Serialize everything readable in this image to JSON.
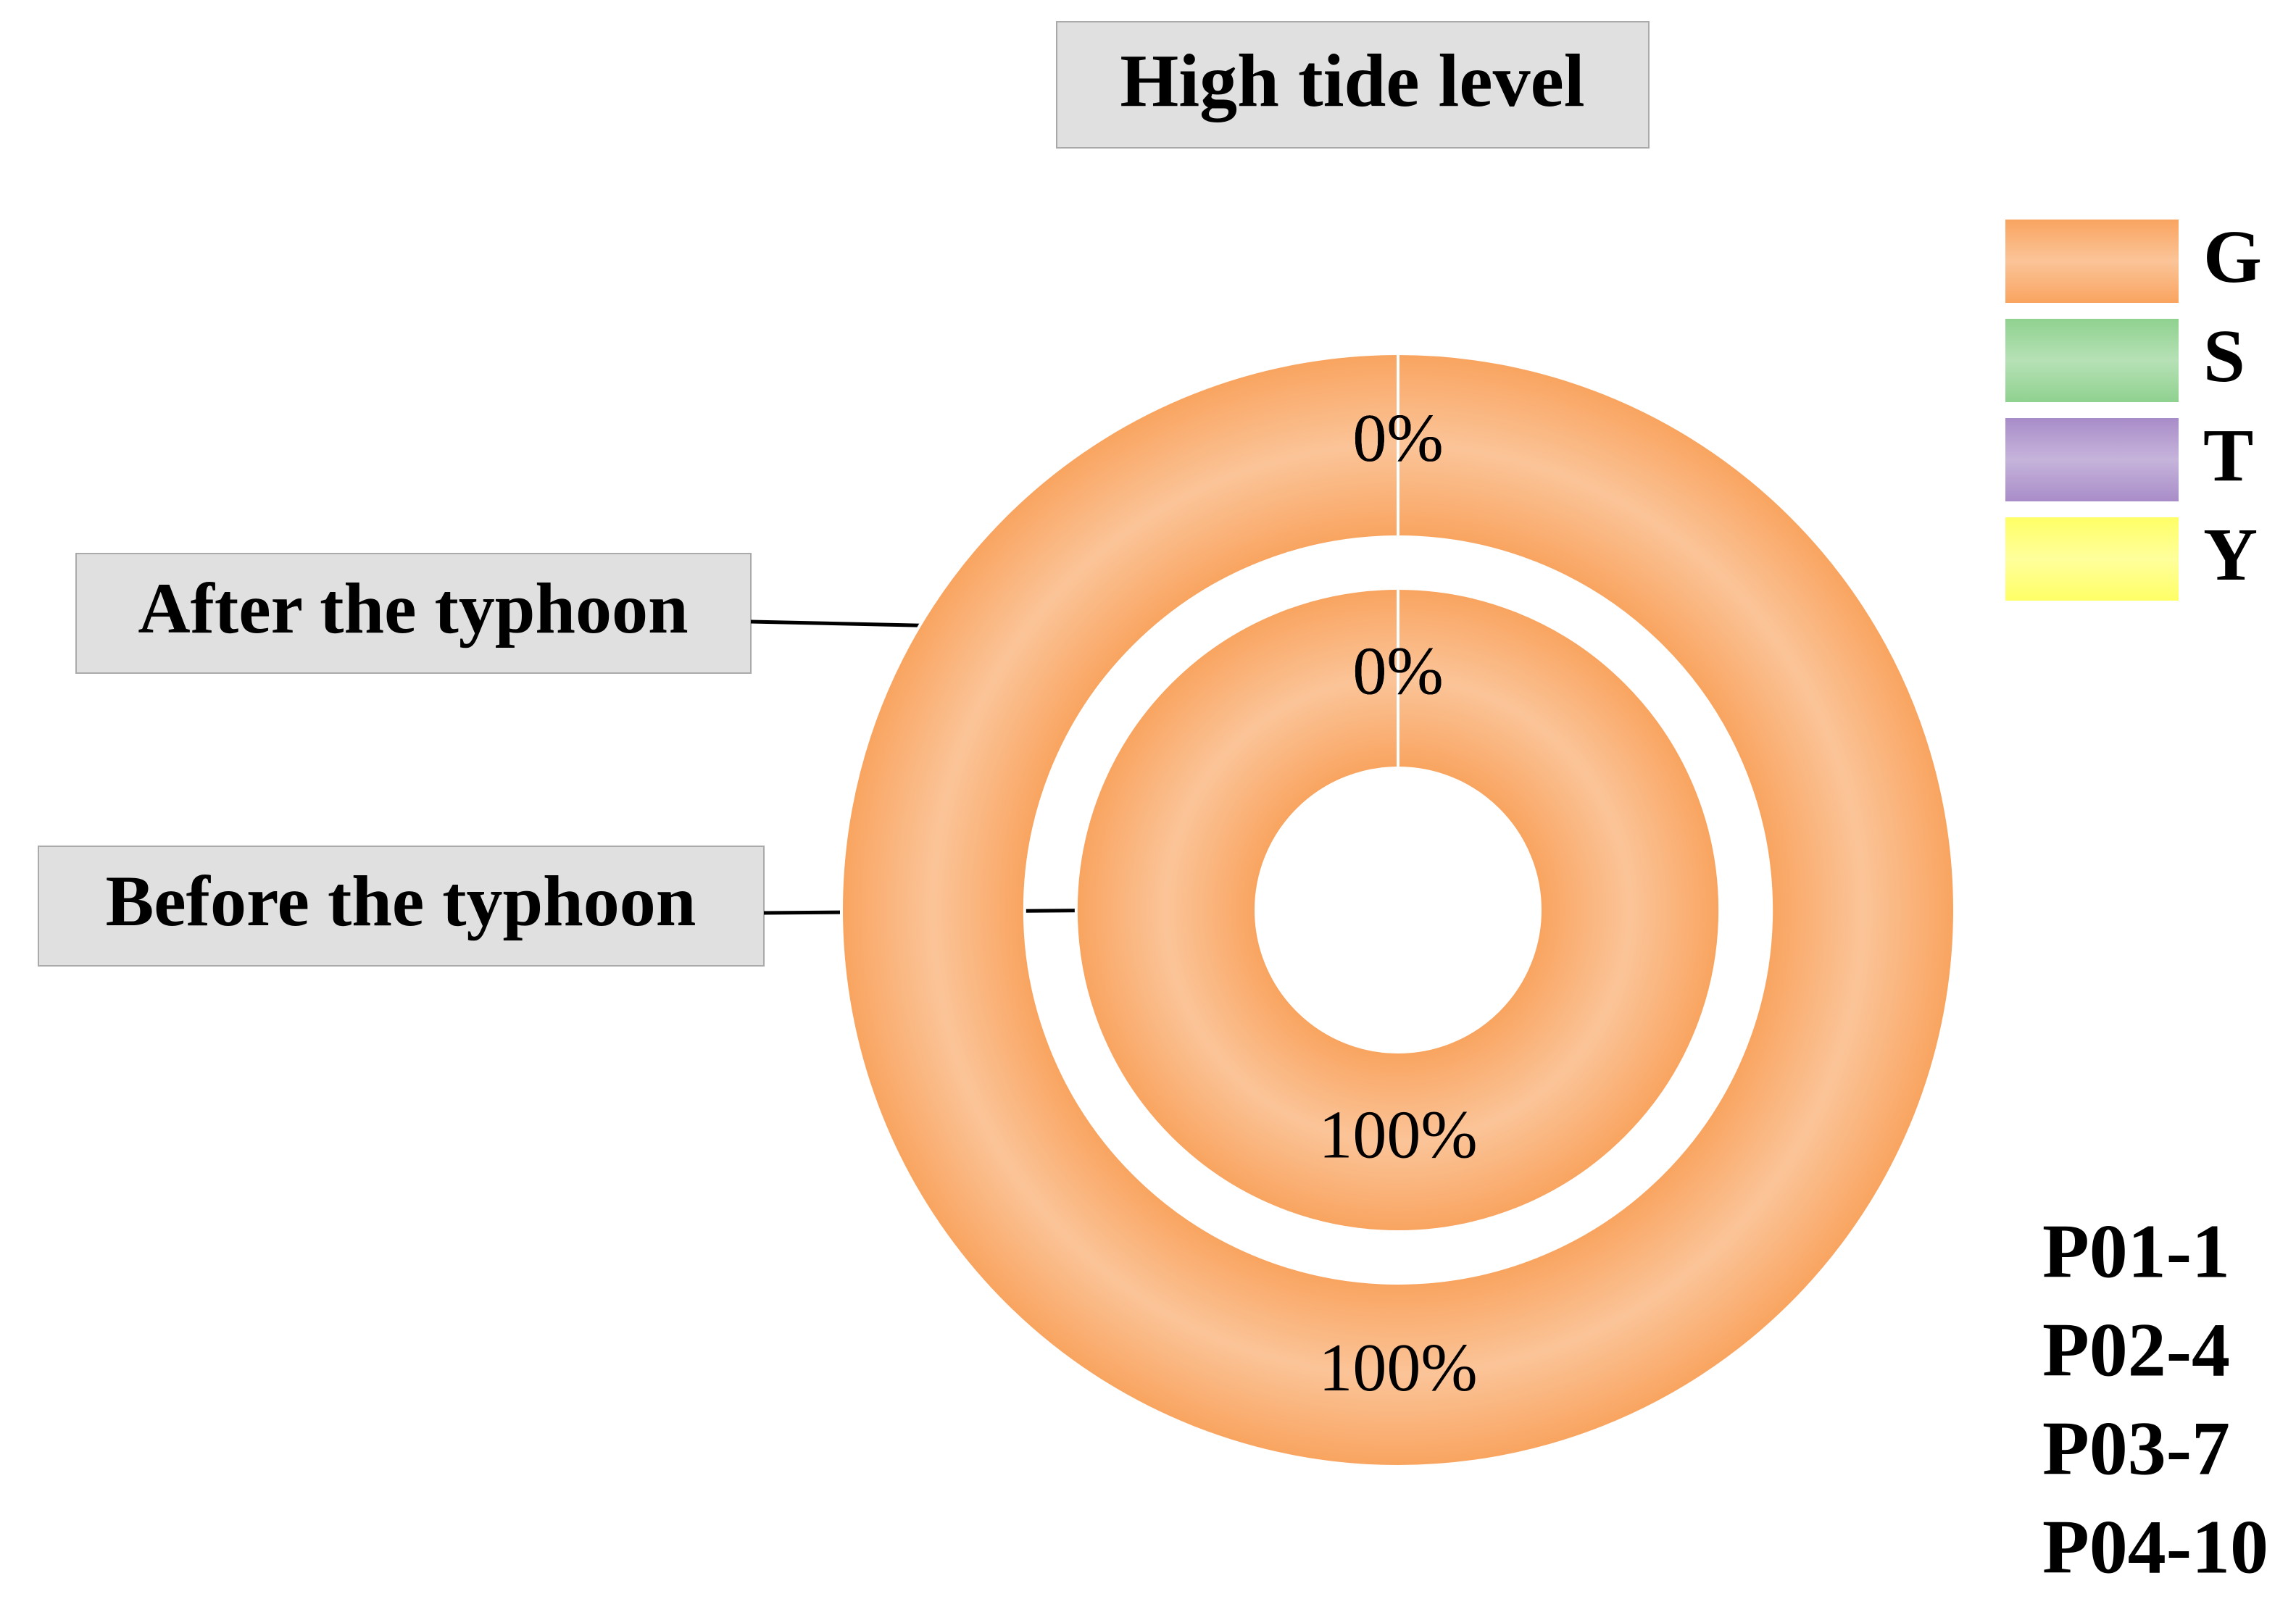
{
  "chart_data": {
    "type": "donut",
    "title": "High tide level",
    "categories": [
      "G",
      "S",
      "T",
      "Y"
    ],
    "colors": [
      "#f9a460",
      "#8fd18f",
      "#a88cc8",
      "#ffff66"
    ],
    "series": [
      {
        "name": "After the typhoon",
        "values": [
          100,
          0,
          0,
          0
        ],
        "value_labels": [
          "100%",
          "0%",
          "0%",
          "0%"
        ]
      },
      {
        "name": "Before the typhoon",
        "values": [
          100,
          0,
          0,
          0
        ],
        "value_labels": [
          "100%",
          "0%",
          "0%",
          "0%"
        ]
      }
    ],
    "legend": "top-right",
    "notes": [
      "P01-1",
      "P02-4",
      "P03-7",
      "P04-10"
    ]
  }
}
